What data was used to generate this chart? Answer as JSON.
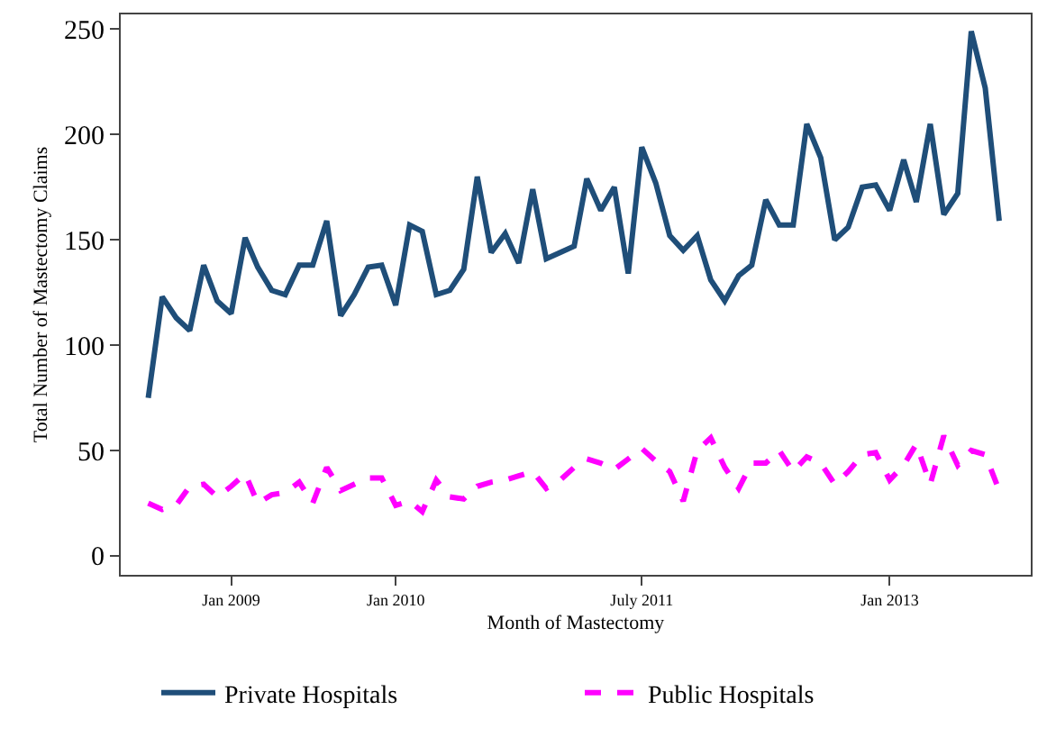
{
  "chart_data": {
    "type": "line",
    "xlabel": "Month of Mastectomy",
    "ylabel": "Total Number of Mastectomy Claims",
    "x": [
      "2008-07",
      "2008-08",
      "2008-09",
      "2008-10",
      "2008-11",
      "2008-12",
      "2009-01",
      "2009-02",
      "2009-03",
      "2009-04",
      "2009-05",
      "2009-06",
      "2009-07",
      "2009-08",
      "2009-09",
      "2009-10",
      "2009-11",
      "2009-12",
      "2010-01",
      "2010-02",
      "2010-03",
      "2010-04",
      "2010-05",
      "2010-06",
      "2010-07",
      "2010-08",
      "2010-09",
      "2010-10",
      "2010-11",
      "2010-12",
      "2011-01",
      "2011-02",
      "2011-03",
      "2011-04",
      "2011-05",
      "2011-06",
      "2011-07",
      "2011-08",
      "2011-09",
      "2011-10",
      "2011-11",
      "2011-12",
      "2012-01",
      "2012-02",
      "2012-03",
      "2012-04",
      "2012-05",
      "2012-06",
      "2012-07",
      "2012-08",
      "2012-09",
      "2012-10",
      "2012-11",
      "2012-12",
      "2013-01",
      "2013-02",
      "2013-03",
      "2013-04",
      "2013-05",
      "2013-06",
      "2013-07",
      "2013-08",
      "2013-09"
    ],
    "series": [
      {
        "name": "Private Hospitals",
        "color": "#1f4e79",
        "line_style": "solid",
        "values": [
          75,
          123,
          113,
          107,
          138,
          121,
          115,
          151,
          137,
          126,
          124,
          138,
          138,
          159,
          114,
          124,
          137,
          138,
          119,
          157,
          154,
          124,
          126,
          136,
          180,
          144,
          153,
          139,
          174,
          141,
          144,
          147,
          179,
          164,
          175,
          134,
          194,
          177,
          152,
          145,
          152,
          131,
          121,
          133,
          138,
          169,
          157,
          157,
          205,
          189,
          150,
          156,
          175,
          176,
          164,
          188,
          168,
          205,
          162,
          172,
          249,
          222,
          159
        ]
      },
      {
        "name": "Public Hospitals",
        "color": "#ff00ff",
        "line_style": "dashed",
        "values": [
          25,
          22,
          24,
          33,
          34,
          28,
          33,
          39,
          25,
          29,
          30,
          35,
          25,
          42,
          31,
          34,
          37,
          37,
          24,
          26,
          21,
          36,
          28,
          27,
          33,
          35,
          36,
          38,
          40,
          32,
          36,
          42,
          46,
          44,
          41,
          46,
          51,
          45,
          40,
          26,
          50,
          56,
          42,
          32,
          44,
          44,
          50,
          40,
          47,
          44,
          34,
          40,
          48,
          49,
          36,
          43,
          53,
          34,
          57,
          43,
          50,
          48,
          31
        ]
      }
    ],
    "xlim": [
      "2008-05-01",
      "2013-11-10"
    ],
    "xticks": [
      {
        "value": "2009-01",
        "label": "Jan 2009"
      },
      {
        "value": "2010-01",
        "label": "Jan 2010"
      },
      {
        "value": "2011-07",
        "label": "July 2011"
      },
      {
        "value": "2013-01",
        "label": "Jan 2013"
      }
    ],
    "ylim": [
      -9,
      257
    ],
    "yticks": [
      0,
      50,
      100,
      150,
      200,
      250
    ],
    "legend": "bottom",
    "marker": "none"
  }
}
